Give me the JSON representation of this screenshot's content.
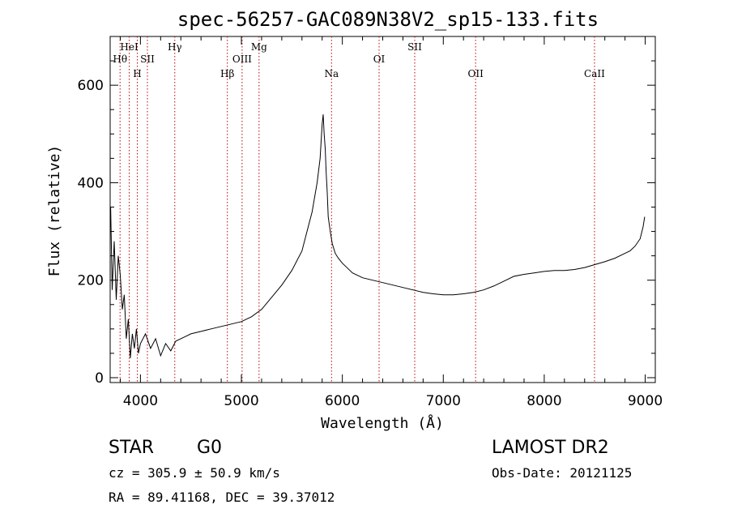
{
  "colors": {
    "line_marker": "#c00000",
    "spectrum": "#000000",
    "axes": "#000000"
  },
  "chart_data": {
    "type": "line",
    "title": "spec-56257-GAC089N38V2_sp15-133.fits",
    "xlabel": "Wavelength (Å)",
    "ylabel": "Flux (relative)",
    "xlim": [
      3700,
      9100
    ],
    "ylim": [
      -10,
      700
    ],
    "grid": false,
    "x_ticks": [
      4000,
      5000,
      6000,
      7000,
      8000,
      9000
    ],
    "y_ticks": [
      0,
      200,
      400,
      600
    ],
    "x_tick_labels": [
      "4000",
      "5000",
      "6000",
      "7000",
      "8000",
      "9000"
    ],
    "y_tick_labels": [
      "0",
      "200",
      "400",
      "600"
    ],
    "spectral_lines": [
      {
        "label": "Hθ",
        "x": 3798,
        "row": 2
      },
      {
        "label": "HeI",
        "x": 3889,
        "row": 1
      },
      {
        "label": "H",
        "x": 3969,
        "row": 3
      },
      {
        "label": "SII",
        "x": 4069,
        "row": 2
      },
      {
        "label": "Hγ",
        "x": 4340,
        "row": 1
      },
      {
        "label": "Hβ",
        "x": 4861,
        "row": 3
      },
      {
        "label": "OIII",
        "x": 5007,
        "row": 2
      },
      {
        "label": "Mg",
        "x": 5175,
        "row": 1
      },
      {
        "label": "Na",
        "x": 5893,
        "row": 3
      },
      {
        "label": "OI",
        "x": 6364,
        "row": 2
      },
      {
        "label": "SII",
        "x": 6717,
        "row": 1
      },
      {
        "label": "OII",
        "x": 7320,
        "row": 3
      },
      {
        "label": "CaII",
        "x": 8498,
        "row": 3
      }
    ],
    "series": [
      {
        "x": [
          3705,
          3720,
          3740,
          3760,
          3780,
          3800,
          3820,
          3840,
          3860,
          3880,
          3900,
          3920,
          3940,
          3960,
          3980,
          4000,
          4050,
          4100,
          4150,
          4200,
          4250,
          4300,
          4350,
          4400,
          4450,
          4500,
          4600,
          4700,
          4800,
          4900,
          5000,
          5100,
          5200,
          5300,
          5400,
          5500,
          5600,
          5650,
          5700,
          5750,
          5780,
          5800,
          5810,
          5820,
          5830,
          5840,
          5850,
          5860,
          5880,
          5900,
          5930,
          5960,
          6000,
          6050,
          6100,
          6200,
          6300,
          6400,
          6500,
          6600,
          6700,
          6800,
          6900,
          7000,
          7100,
          7200,
          7300,
          7400,
          7500,
          7600,
          7700,
          7800,
          7900,
          8000,
          8100,
          8200,
          8300,
          8400,
          8500,
          8600,
          8700,
          8800,
          8850,
          8900,
          8950,
          8980,
          8995
        ],
        "y": [
          350,
          180,
          280,
          160,
          250,
          210,
          140,
          170,
          80,
          120,
          40,
          90,
          60,
          100,
          50,
          70,
          90,
          60,
          80,
          45,
          70,
          55,
          75,
          80,
          85,
          90,
          95,
          100,
          105,
          110,
          115,
          125,
          140,
          165,
          190,
          220,
          260,
          300,
          340,
          400,
          450,
          520,
          540,
          500,
          470,
          420,
          380,
          330,
          300,
          275,
          255,
          245,
          235,
          225,
          215,
          205,
          200,
          195,
          190,
          185,
          180,
          175,
          172,
          170,
          170,
          172,
          175,
          180,
          188,
          198,
          208,
          212,
          215,
          218,
          220,
          220,
          222,
          226,
          232,
          238,
          245,
          255,
          260,
          270,
          285,
          310,
          330
        ]
      }
    ]
  },
  "info": {
    "class_label": "STAR",
    "subclass": "G0",
    "survey": "LAMOST DR2",
    "cz": "cz = 305.9 ± 50.9 km/s",
    "obs_date": "Obs-Date: 20121125",
    "radec": "RA =  89.41168, DEC =  39.37012"
  }
}
